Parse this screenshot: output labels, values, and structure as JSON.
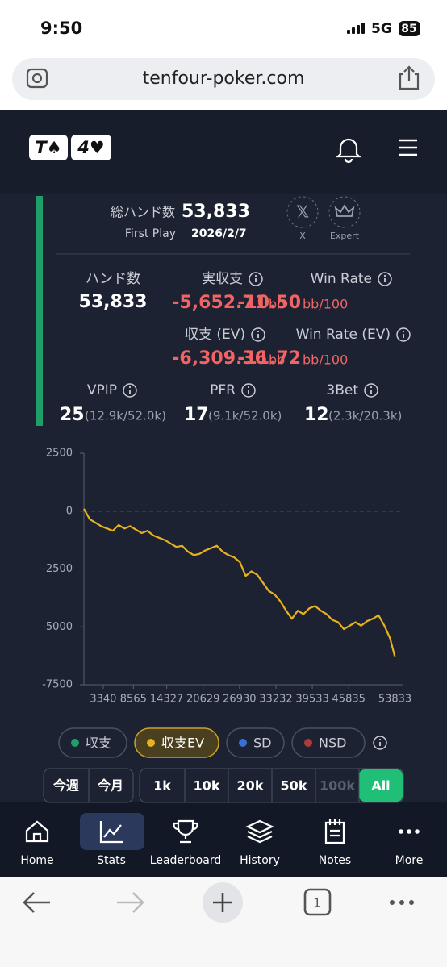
{
  "status_bar": {
    "time": "9:50",
    "network": "5G",
    "battery": "85"
  },
  "browser": {
    "url": "tenfour-poker.com",
    "tab_count": "1"
  },
  "logo": {
    "cards": [
      "T♠",
      "4♥"
    ]
  },
  "summary": {
    "total_hands_label": "総ハンド数",
    "total_hands": "53,833",
    "first_play_label": "First Play",
    "first_play": "2026/2/7",
    "badges": [
      "X",
      "Expert"
    ]
  },
  "stats": [
    {
      "label": "ハンド数",
      "value": "53,833"
    },
    {
      "label": "実収支",
      "value": "-5,652.71",
      "unit": "bb"
    },
    {
      "label": "Win Rate",
      "value": "-10.50",
      "unit": "bb/100"
    },
    {
      "label": "収支 (EV)",
      "value": "-6,309.36",
      "unit": "bb"
    },
    {
      "label": "Win Rate (EV)",
      "value": "-11.72",
      "unit": "bb/100"
    },
    {
      "label": "VPIP",
      "value": "25",
      "detail": "(12.9k/52.0k)"
    },
    {
      "label": "PFR",
      "value": "17",
      "detail": "(9.1k/52.0k)"
    },
    {
      "label": "3Bet",
      "value": "12",
      "detail": "(2.3k/20.3k)"
    }
  ],
  "chart_data": {
    "type": "line",
    "x": [
      0,
      1000,
      2000,
      3000,
      4000,
      5000,
      6000,
      7000,
      8000,
      9000,
      10000,
      11000,
      12000,
      13000,
      14000,
      15000,
      16000,
      17000,
      18000,
      19000,
      20000,
      21000,
      22000,
      23000,
      24000,
      25000,
      26000,
      27000,
      28000,
      29000,
      30000,
      31000,
      32000,
      33000,
      34000,
      35000,
      36000,
      37000,
      38000,
      39000,
      40000,
      41000,
      42000,
      43000,
      44000,
      45000,
      46000,
      47000,
      48000,
      49000,
      50000,
      51000,
      52000,
      53000,
      53833
    ],
    "series": [
      {
        "name": "収支EV",
        "color": "#e8b21c",
        "values": [
          100,
          -350,
          -500,
          -650,
          -750,
          -850,
          -600,
          -750,
          -650,
          -800,
          -950,
          -850,
          -1050,
          -1150,
          -1250,
          -1400,
          -1550,
          -1500,
          -1750,
          -1900,
          -1850,
          -1700,
          -1600,
          -1500,
          -1750,
          -1900,
          -2000,
          -2200,
          -2800,
          -2600,
          -2750,
          -3100,
          -3450,
          -3600,
          -3900,
          -4300,
          -4650,
          -4300,
          -4450,
          -4200,
          -4100,
          -4300,
          -4450,
          -4700,
          -4800,
          -5100,
          -4950,
          -4800,
          -4950,
          -4750,
          -4650,
          -4500,
          -4950,
          -5500,
          -6300
        ]
      }
    ],
    "xlim": [
      0,
      55300
    ],
    "ylim": [
      -7500,
      2500
    ],
    "xticks": [
      3340,
      8565,
      14327,
      20629,
      26930,
      33232,
      39533,
      45835,
      53833
    ],
    "yticks": [
      2500,
      0,
      -2500,
      -5000,
      -7500
    ]
  },
  "toggles": [
    "収支",
    "SD",
    "NSD"
  ],
  "range_buttons": [
    "今週",
    "今月",
    "1k",
    "10k",
    "20k",
    "50k",
    "100k",
    "All"
  ],
  "nav": [
    "Home",
    "Stats",
    "Leaderboard",
    "History",
    "Notes",
    "More"
  ]
}
